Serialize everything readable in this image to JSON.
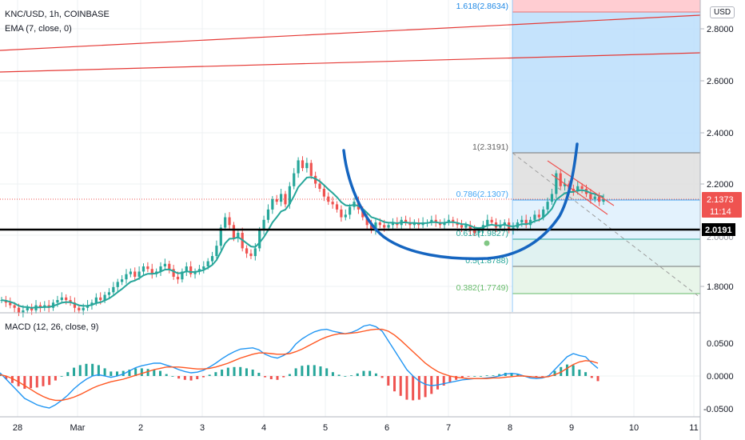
{
  "legend": {
    "symbol": "KNC/USD, 1h, COINBASE",
    "ema": "EMA (7, close, 0)",
    "macd": "MACD (12, 26, close, 9)"
  },
  "currency_button": "USD",
  "price_axis": {
    "ticks": [
      "2.8000",
      "2.6000",
      "2.4000",
      "2.2000",
      "1.8000"
    ],
    "current_price": "2.1373",
    "countdown": "11:14",
    "horizontal_level": "2.0191",
    "partial_tick": "2.0000"
  },
  "macd_axis": {
    "ticks": [
      "0.0500",
      "0.0000",
      "-0.0500"
    ]
  },
  "time_axis": {
    "ticks": [
      "28",
      "Mar",
      "2",
      "3",
      "4",
      "5",
      "6",
      "7",
      "8",
      "9",
      "10",
      "11"
    ]
  },
  "fib_levels": [
    {
      "label": "1.618(2.8634)",
      "value": 2.8634
    },
    {
      "label": "1(2.3191)",
      "value": 2.3191
    },
    {
      "label": "0.786(2.1307)",
      "value": 2.1307
    },
    {
      "label": "0.618(1.9827)",
      "value": 1.9827
    },
    {
      "label": "0.5(1.8788)",
      "value": 1.8788
    },
    {
      "label": "0.382(1.7749)",
      "value": 1.7749
    }
  ],
  "colors": {
    "up": "#26a69a",
    "down": "#ef5350",
    "ema": "#26a69a",
    "blue_drawing": "#1565c0",
    "macd_line": "#2196f3",
    "signal_line": "#ff5722",
    "fib_blue": "#bbdefb",
    "fib_red": "#ffcdd2"
  },
  "chart_data": {
    "type": "candlestick",
    "price_range": [
      1.7,
      2.9
    ],
    "closes": [
      1.75,
      1.74,
      1.73,
      1.72,
      1.7,
      1.71,
      1.72,
      1.71,
      1.73,
      1.72,
      1.73,
      1.72,
      1.74,
      1.75,
      1.76,
      1.75,
      1.74,
      1.72,
      1.71,
      1.72,
      1.73,
      1.74,
      1.76,
      1.75,
      1.77,
      1.78,
      1.8,
      1.82,
      1.83,
      1.85,
      1.86,
      1.84,
      1.86,
      1.88,
      1.87,
      1.85,
      1.86,
      1.88,
      1.89,
      1.87,
      1.84,
      1.83,
      1.86,
      1.88,
      1.85,
      1.86,
      1.87,
      1.88,
      1.9,
      1.92,
      1.96,
      2.03,
      2.07,
      2.04,
      1.99,
      2.01,
      1.95,
      1.93,
      1.92,
      1.95,
      2.02,
      2.06,
      2.1,
      2.14,
      2.13,
      2.16,
      2.12,
      2.19,
      2.24,
      2.29,
      2.26,
      2.28,
      2.23,
      2.2,
      2.18,
      2.15,
      2.13,
      2.12,
      2.1,
      2.07,
      2.08,
      2.11,
      2.13,
      2.1,
      2.07,
      2.04,
      2.02,
      2.05,
      2.04,
      2.03,
      2.04,
      2.05,
      2.04,
      2.06,
      2.05,
      2.04,
      2.05,
      2.04,
      2.05,
      2.05,
      2.06,
      2.05,
      2.04,
      2.05,
      2.06,
      2.05,
      2.04,
      2.03,
      2.04,
      2.02,
      2.01,
      2.02,
      2.04,
      2.06,
      2.05,
      2.03,
      2.04,
      2.05,
      2.02,
      2.03,
      2.05,
      2.06,
      2.04,
      2.06,
      2.08,
      2.07,
      2.1,
      2.13,
      2.16,
      2.24,
      2.19,
      2.2,
      2.18,
      2.17,
      2.19,
      2.18,
      2.16,
      2.14,
      2.15,
      2.13,
      2.14
    ]
  },
  "macd_data": {
    "range": [
      -0.06,
      0.09
    ],
    "macd": [
      0.005,
      -0.005,
      -0.015,
      -0.025,
      -0.035,
      -0.04,
      -0.045,
      -0.048,
      -0.05,
      -0.045,
      -0.038,
      -0.03,
      -0.02,
      -0.012,
      -0.005,
      0.0,
      0.002,
      0.0,
      -0.002,
      0.0,
      0.003,
      0.008,
      0.013,
      0.016,
      0.018,
      0.02,
      0.02,
      0.017,
      0.014,
      0.01,
      0.007,
      0.005,
      0.006,
      0.009,
      0.014,
      0.02,
      0.027,
      0.033,
      0.038,
      0.042,
      0.043,
      0.044,
      0.041,
      0.034,
      0.03,
      0.028,
      0.032,
      0.038,
      0.05,
      0.058,
      0.064,
      0.069,
      0.072,
      0.073,
      0.07,
      0.068,
      0.066,
      0.068,
      0.072,
      0.078,
      0.08,
      0.077,
      0.07,
      0.055,
      0.04,
      0.025,
      0.01,
      0.0,
      -0.008,
      -0.013,
      -0.015,
      -0.014,
      -0.012,
      -0.01,
      -0.008,
      -0.006,
      -0.005,
      -0.004,
      -0.004,
      -0.003,
      -0.002,
      0.0,
      0.003,
      0.004,
      0.003,
      0.0,
      -0.003,
      -0.004,
      -0.003,
      0.0,
      0.01,
      0.02,
      0.03,
      0.035,
      0.032,
      0.03,
      0.02,
      0.012
    ],
    "signal": [
      0.002,
      0.0,
      -0.004,
      -0.009,
      -0.015,
      -0.021,
      -0.027,
      -0.032,
      -0.036,
      -0.038,
      -0.038,
      -0.036,
      -0.033,
      -0.029,
      -0.024,
      -0.019,
      -0.015,
      -0.012,
      -0.009,
      -0.007,
      -0.005,
      -0.002,
      0.001,
      0.004,
      0.007,
      0.01,
      0.012,
      0.014,
      0.014,
      0.014,
      0.013,
      0.012,
      0.011,
      0.011,
      0.012,
      0.014,
      0.017,
      0.02,
      0.024,
      0.028,
      0.031,
      0.034,
      0.036,
      0.036,
      0.035,
      0.034,
      0.034,
      0.035,
      0.038,
      0.042,
      0.047,
      0.052,
      0.057,
      0.061,
      0.064,
      0.066,
      0.066,
      0.067,
      0.068,
      0.07,
      0.072,
      0.073,
      0.073,
      0.07,
      0.064,
      0.056,
      0.047,
      0.038,
      0.029,
      0.02,
      0.013,
      0.007,
      0.003,
      0.0,
      -0.002,
      -0.003,
      -0.004,
      -0.004,
      -0.004,
      -0.004,
      -0.003,
      -0.003,
      -0.002,
      -0.001,
      0.0,
      0.0,
      -0.001,
      -0.002,
      -0.002,
      -0.001,
      0.002,
      0.006,
      0.012,
      0.018,
      0.022,
      0.024,
      0.023,
      0.02
    ]
  }
}
